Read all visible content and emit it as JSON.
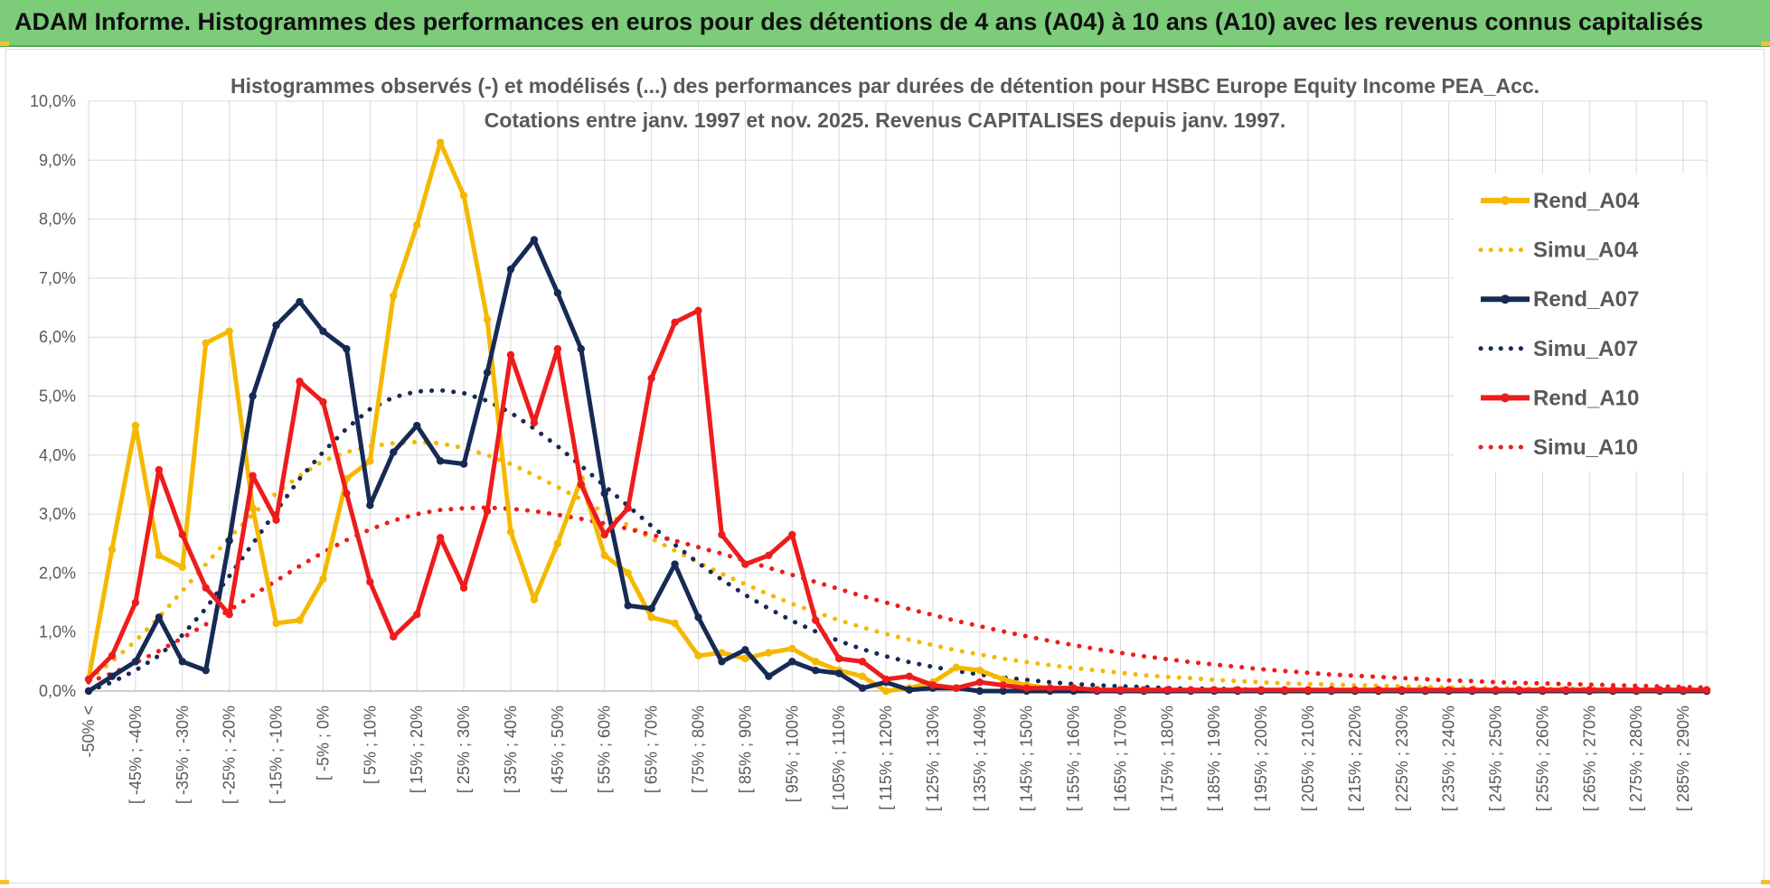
{
  "banner": {
    "title": "ADAM Informe. Histogrammes des performances en euros pour des détentions de 4 ans (A04) à 10 ans (A10) avec les revenus connus capitalisés",
    "background": "#7ccc7a"
  },
  "chart_data": {
    "type": "line",
    "title_line1": "Histogrammes observés (-) et modélisés (...) des performances par durées de détention pour HSBC Europe Equity Income PEA_Acc.",
    "title_line2": "Cotations entre janv. 1997 et nov. 2025. Revenus CAPITALISES depuis janv. 1997.",
    "xlabel": "",
    "ylabel": "",
    "ylim": [
      0,
      10
    ],
    "y_ticks": [
      "0,0%",
      "1,0%",
      "2,0%",
      "3,0%",
      "4,0%",
      "5,0%",
      "6,0%",
      "7,0%",
      "8,0%",
      "9,0%",
      "10,0%"
    ],
    "grid": true,
    "legend_position": "right",
    "x_tick_labels": [
      "-50% <",
      "[ -45% ; -40%",
      "[ -35% ; -30%",
      "[ -25% ; -20%",
      "[ -15% ; -10%",
      "[ -5% ; 0%",
      "[ 5% ; 10%",
      "[ 15% ; 20%",
      "[ 25% ; 30%",
      "[ 35% ; 40%",
      "[ 45% ; 50%",
      "[ 55% ; 60%",
      "[ 65% ; 70%",
      "[ 75% ; 80%",
      "[ 85% ; 90%",
      "[ 95% ; 100%",
      "[ 105% ; 110%",
      "[ 115% ; 120%",
      "[ 125% ; 130%",
      "[ 135% ; 140%",
      "[ 145% ; 150%",
      "[ 155% ; 160%",
      "[ 165% ; 170%",
      "[ 175% ; 180%",
      "[ 185% ; 190%",
      "[ 195% ; 200%",
      "[ 205% ; 210%",
      "[ 215% ; 220%",
      "[ 225% ; 230%",
      "[ 235% ; 240%",
      "[ 245% ; 250%",
      "[ 255% ; 260%",
      "[ 265% ; 270%",
      "[ 275% ; 280%",
      "[ 285% ; 290%"
    ],
    "x_tick_step": 2,
    "series": [
      {
        "name": "Rend_A04",
        "style": "solid",
        "color": "#f5b800",
        "values": [
          0.2,
          2.4,
          4.5,
          2.3,
          2.1,
          5.9,
          6.1,
          3.1,
          1.15,
          1.2,
          1.9,
          3.6,
          3.9,
          6.7,
          7.9,
          9.3,
          8.4,
          6.3,
          2.7,
          1.55,
          2.5,
          3.6,
          2.3,
          2.0,
          1.25,
          1.15,
          0.6,
          0.65,
          0.55,
          0.65,
          0.72,
          0.5,
          0.35,
          0.25,
          0.0,
          0.05,
          0.15,
          0.4,
          0.35,
          0.2,
          0.1,
          0.05,
          0.05,
          0.02,
          0.02,
          0.02,
          0.01,
          0.01,
          0.01,
          0.01,
          0.0,
          0.0,
          0.0,
          0.0,
          0.0,
          0.0,
          0.0,
          0.0,
          0.0,
          0.0,
          0.0,
          0.0,
          0.0,
          0.0,
          0.0,
          0.0,
          0.0,
          0.0,
          0.0,
          0.0
        ]
      },
      {
        "name": "Simu_A04",
        "style": "dotted",
        "color": "#f5b800",
        "values": [
          0.2,
          0.5,
          0.85,
          1.25,
          1.7,
          2.15,
          2.6,
          3.0,
          3.35,
          3.65,
          3.9,
          4.05,
          4.15,
          4.2,
          4.22,
          4.2,
          4.12,
          4.0,
          3.85,
          3.66,
          3.46,
          3.25,
          3.03,
          2.81,
          2.59,
          2.38,
          2.18,
          1.99,
          1.81,
          1.64,
          1.48,
          1.34,
          1.2,
          1.08,
          0.97,
          0.87,
          0.78,
          0.69,
          0.62,
          0.55,
          0.49,
          0.44,
          0.39,
          0.35,
          0.31,
          0.27,
          0.24,
          0.22,
          0.19,
          0.17,
          0.15,
          0.13,
          0.12,
          0.11,
          0.1,
          0.09,
          0.08,
          0.07,
          0.06,
          0.06,
          0.05,
          0.05,
          0.04,
          0.04,
          0.04,
          0.03,
          0.03,
          0.03,
          0.03,
          0.02
        ]
      },
      {
        "name": "Rend_A07",
        "style": "solid",
        "color": "#172a55",
        "values": [
          0.0,
          0.25,
          0.5,
          1.25,
          0.5,
          0.35,
          2.55,
          5.0,
          6.2,
          6.6,
          6.1,
          5.8,
          3.15,
          4.05,
          4.5,
          3.9,
          3.85,
          5.4,
          7.15,
          7.65,
          6.75,
          5.8,
          3.35,
          1.45,
          1.4,
          2.15,
          1.25,
          0.5,
          0.7,
          0.25,
          0.5,
          0.35,
          0.3,
          0.05,
          0.15,
          0.02,
          0.05,
          0.05,
          0.0,
          0.0,
          0.0,
          0.0,
          0.0,
          0.0,
          0.0,
          0.0,
          0.0,
          0.0,
          0.0,
          0.0,
          0.0,
          0.0,
          0.0,
          0.0,
          0.0,
          0.0,
          0.0,
          0.0,
          0.0,
          0.0,
          0.0,
          0.0,
          0.0,
          0.0,
          0.0,
          0.0,
          0.0,
          0.0,
          0.0,
          0.0
        ]
      },
      {
        "name": "Simu_A07",
        "style": "dotted",
        "color": "#172a55",
        "values": [
          0.0,
          0.15,
          0.35,
          0.6,
          0.95,
          1.4,
          1.95,
          2.5,
          3.05,
          3.6,
          4.05,
          4.45,
          4.78,
          4.98,
          5.08,
          5.1,
          5.05,
          4.92,
          4.72,
          4.45,
          4.15,
          3.82,
          3.48,
          3.14,
          2.8,
          2.48,
          2.17,
          1.89,
          1.63,
          1.4,
          1.19,
          1.01,
          0.85,
          0.71,
          0.59,
          0.49,
          0.41,
          0.34,
          0.28,
          0.23,
          0.19,
          0.15,
          0.12,
          0.1,
          0.08,
          0.07,
          0.05,
          0.04,
          0.04,
          0.03,
          0.02,
          0.02,
          0.02,
          0.01,
          0.01,
          0.01,
          0.01,
          0.01,
          0.0,
          0.0,
          0.0,
          0.0,
          0.0,
          0.0,
          0.0,
          0.0,
          0.0,
          0.0,
          0.0,
          0.0
        ]
      },
      {
        "name": "Rend_A10",
        "style": "solid",
        "color": "#ee1c1c",
        "values": [
          0.2,
          0.6,
          1.5,
          3.75,
          2.65,
          1.75,
          1.3,
          3.65,
          2.9,
          5.25,
          4.9,
          3.35,
          1.85,
          0.92,
          1.3,
          2.6,
          1.75,
          3.05,
          5.7,
          4.55,
          5.8,
          3.5,
          2.65,
          3.1,
          5.3,
          6.25,
          6.45,
          2.65,
          2.15,
          2.3,
          2.65,
          1.2,
          0.55,
          0.5,
          0.2,
          0.25,
          0.1,
          0.05,
          0.15,
          0.1,
          0.05,
          0.05,
          0.05,
          0.02,
          0.02,
          0.02,
          0.02,
          0.02,
          0.02,
          0.02,
          0.02,
          0.02,
          0.02,
          0.02,
          0.02,
          0.02,
          0.02,
          0.02,
          0.02,
          0.02,
          0.02,
          0.02,
          0.02,
          0.02,
          0.02,
          0.02,
          0.02,
          0.02,
          0.02,
          0.02
        ]
      },
      {
        "name": "Simu_A10",
        "style": "dotted",
        "color": "#ee1c1c",
        "values": [
          0.15,
          0.3,
          0.48,
          0.68,
          0.9,
          1.13,
          1.37,
          1.62,
          1.87,
          2.12,
          2.35,
          2.56,
          2.74,
          2.89,
          3.0,
          3.07,
          3.1,
          3.11,
          3.09,
          3.05,
          2.99,
          2.92,
          2.84,
          2.75,
          2.65,
          2.55,
          2.44,
          2.33,
          2.21,
          2.09,
          1.97,
          1.85,
          1.73,
          1.61,
          1.5,
          1.39,
          1.29,
          1.19,
          1.1,
          1.01,
          0.93,
          0.85,
          0.78,
          0.71,
          0.65,
          0.59,
          0.54,
          0.49,
          0.45,
          0.41,
          0.37,
          0.34,
          0.31,
          0.28,
          0.26,
          0.24,
          0.22,
          0.2,
          0.18,
          0.17,
          0.15,
          0.14,
          0.13,
          0.12,
          0.11,
          0.1,
          0.09,
          0.08,
          0.07,
          0.06
        ]
      }
    ]
  }
}
